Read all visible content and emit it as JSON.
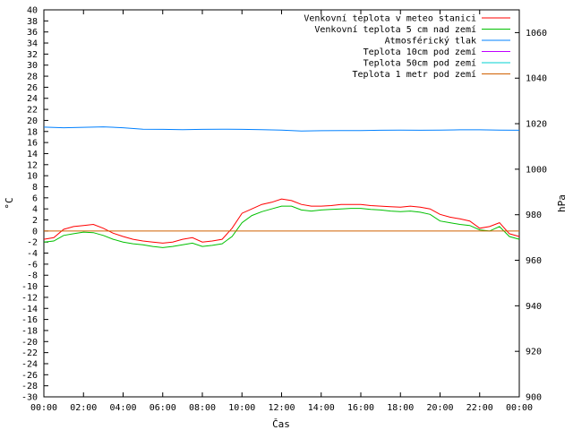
{
  "chart_data": {
    "type": "line",
    "xlabel": "Čas",
    "ylabel": "°C",
    "y2label": "hPa",
    "xlim": [
      0,
      24
    ],
    "ylim": [
      -30,
      40
    ],
    "y2lim": [
      900,
      1070
    ],
    "x_ticks": [
      "00:00",
      "02:00",
      "04:00",
      "06:00",
      "08:00",
      "10:00",
      "12:00",
      "14:00",
      "16:00",
      "18:00",
      "20:00",
      "22:00",
      "00:00"
    ],
    "y_ticks": [
      40,
      38,
      36,
      34,
      32,
      30,
      28,
      26,
      24,
      22,
      20,
      18,
      16,
      14,
      12,
      10,
      8,
      6,
      4,
      2,
      0,
      -2,
      -4,
      -6,
      -8,
      -10,
      -12,
      -14,
      -16,
      -18,
      -20,
      -22,
      -24,
      -26,
      -28,
      -30
    ],
    "y2_ticks": [
      1060,
      1040,
      1020,
      1000,
      980,
      960,
      940,
      920,
      900
    ],
    "grid": false,
    "legend_position": "top-right",
    "series": [
      {
        "name": "Venkovní teplota v meteo stanici",
        "color": "#ff0000",
        "axis": "left",
        "x": [
          0,
          0.5,
          1,
          1.5,
          2,
          2.5,
          3,
          3.5,
          4,
          4.5,
          5,
          5.5,
          6,
          6.5,
          7,
          7.5,
          8,
          8.5,
          9,
          9.5,
          10,
          10.5,
          11,
          11.5,
          12,
          12.5,
          13,
          13.5,
          14,
          14.5,
          15,
          15.5,
          16,
          16.5,
          17,
          17.5,
          18,
          18.5,
          19,
          19.5,
          20,
          20.5,
          21,
          21.5,
          22,
          22.5,
          23,
          23.5,
          24
        ],
        "values": [
          -1.5,
          -1.2,
          0.3,
          0.8,
          1.0,
          1.2,
          0.5,
          -0.4,
          -1.0,
          -1.5,
          -1.8,
          -2.0,
          -2.2,
          -2.0,
          -1.5,
          -1.2,
          -2.0,
          -1.8,
          -1.5,
          0.5,
          3.2,
          4.0,
          4.8,
          5.2,
          5.8,
          5.5,
          4.8,
          4.5,
          4.5,
          4.6,
          4.8,
          4.8,
          4.8,
          4.6,
          4.5,
          4.4,
          4.3,
          4.5,
          4.3,
          4.0,
          3.0,
          2.5,
          2.2,
          1.8,
          0.5,
          0.8,
          1.5,
          -0.5,
          -1.0
        ]
      },
      {
        "name": "Venkovní teplota 5 cm nad zemí",
        "color": "#00c000",
        "axis": "left",
        "x": [
          0,
          0.5,
          1,
          1.5,
          2,
          2.5,
          3,
          3.5,
          4,
          4.5,
          5,
          5.5,
          6,
          6.5,
          7,
          7.5,
          8,
          8.5,
          9,
          9.5,
          10,
          10.5,
          11,
          11.5,
          12,
          12.5,
          13,
          13.5,
          14,
          14.5,
          15,
          15.5,
          16,
          16.5,
          17,
          17.5,
          18,
          18.5,
          19,
          19.5,
          20,
          20.5,
          21,
          21.5,
          22,
          22.5,
          23,
          23.5,
          24
        ],
        "values": [
          -2.0,
          -1.8,
          -0.8,
          -0.5,
          -0.2,
          -0.3,
          -0.8,
          -1.5,
          -2.0,
          -2.3,
          -2.5,
          -2.8,
          -3.0,
          -2.8,
          -2.5,
          -2.2,
          -2.8,
          -2.6,
          -2.3,
          -1.0,
          1.5,
          2.8,
          3.5,
          4.0,
          4.5,
          4.5,
          3.8,
          3.6,
          3.8,
          3.9,
          4.0,
          4.1,
          4.1,
          3.9,
          3.8,
          3.6,
          3.5,
          3.6,
          3.4,
          3.0,
          1.8,
          1.5,
          1.2,
          1.0,
          0.2,
          0.0,
          0.8,
          -1.0,
          -1.5
        ]
      },
      {
        "name": "Atmosférický tlak",
        "color": "#0080ff",
        "axis": "right",
        "x": [
          0,
          1,
          2,
          3,
          4,
          5,
          6,
          7,
          8,
          9,
          10,
          11,
          12,
          13,
          14,
          15,
          16,
          17,
          18,
          19,
          20,
          21,
          22,
          23,
          24
        ],
        "values": [
          1018.5,
          1018.2,
          1018.4,
          1018.6,
          1018.2,
          1017.6,
          1017.5,
          1017.4,
          1017.5,
          1017.6,
          1017.5,
          1017.4,
          1017.2,
          1016.8,
          1016.9,
          1017.0,
          1017.0,
          1017.1,
          1017.2,
          1017.1,
          1017.2,
          1017.3,
          1017.3,
          1017.2,
          1017.1
        ]
      },
      {
        "name": "Teplota 10cm pod zemí",
        "color": "#c000ff",
        "axis": "left",
        "x": [],
        "values": []
      },
      {
        "name": "Teplota 50cm pod zemí",
        "color": "#00d0d0",
        "axis": "left",
        "x": [],
        "values": []
      },
      {
        "name": "Teplota 1 metr pod zemí",
        "color": "#d06000",
        "axis": "left",
        "x": [
          0,
          24
        ],
        "values": [
          0,
          0
        ]
      }
    ]
  }
}
